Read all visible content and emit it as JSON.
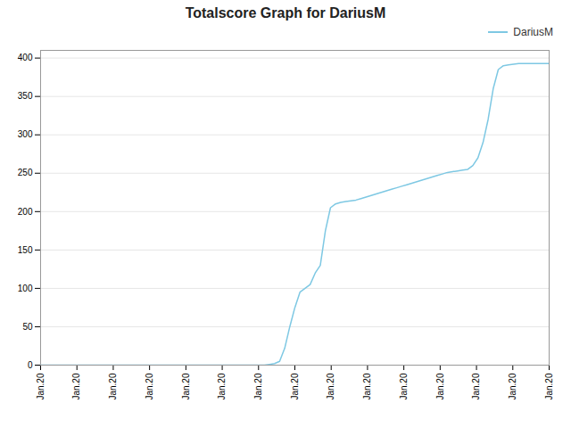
{
  "chart_data": {
    "type": "line",
    "title": "Totalscore Graph for DariusM",
    "x": [
      0,
      1,
      2,
      3,
      4,
      5,
      6,
      7,
      8,
      9,
      10,
      11,
      12,
      13,
      14,
      15,
      16,
      17,
      18,
      19,
      20,
      21,
      22,
      23,
      24,
      25,
      26,
      27,
      28,
      29,
      30,
      31,
      32,
      33,
      34,
      35,
      36,
      37,
      38,
      39,
      40,
      41,
      42,
      43,
      44,
      45,
      46,
      47,
      48,
      49,
      50,
      51,
      52,
      53,
      54,
      55,
      56,
      57,
      58,
      59,
      60,
      61,
      62,
      63,
      64,
      65,
      66,
      67,
      68,
      69,
      70,
      71,
      72,
      73,
      74,
      75,
      76,
      77,
      78,
      79,
      80,
      81,
      82,
      83,
      84,
      85,
      86,
      87,
      88,
      89,
      90,
      91,
      92,
      93,
      94,
      95,
      96,
      97,
      98,
      99,
      100
    ],
    "series": [
      {
        "name": "DariusM",
        "color": "#7ec8e3",
        "values": [
          0,
          0,
          0,
          0,
          0,
          0,
          0,
          0,
          0,
          0,
          0,
          0,
          0,
          0,
          0,
          0,
          0,
          0,
          0,
          0,
          0,
          0,
          0,
          0,
          0,
          0,
          0,
          0,
          0,
          0,
          0,
          0,
          0,
          0,
          0,
          0,
          0,
          0,
          0,
          0,
          0,
          0,
          0,
          0,
          0,
          1,
          2,
          5,
          22,
          50,
          75,
          95,
          100,
          105,
          120,
          130,
          175,
          205,
          210,
          212,
          213,
          214,
          215,
          217,
          219,
          221,
          223,
          225,
          227,
          229,
          231,
          233,
          235,
          237,
          239,
          241,
          243,
          245,
          247,
          249,
          251,
          252,
          253,
          254,
          255,
          260,
          270,
          290,
          320,
          360,
          385,
          390,
          391,
          392,
          393,
          393,
          393,
          393,
          393,
          393,
          393
        ]
      }
    ],
    "xlim": [
      0,
      100
    ],
    "xticks": [
      {
        "value": 0,
        "label": "Jan.20"
      },
      {
        "value": 7.142857142857143,
        "label": "Jan.20"
      },
      {
        "value": 14.285714285714286,
        "label": "Jan.20"
      },
      {
        "value": 21.428571428571427,
        "label": "Jan.20"
      },
      {
        "value": 28.571428571428573,
        "label": "Jan.20"
      },
      {
        "value": 35.714285714285715,
        "label": "Jan.20"
      },
      {
        "value": 42.857142857142854,
        "label": "Jan.20"
      },
      {
        "value": 50,
        "label": "Jan.20"
      },
      {
        "value": 57.142857142857146,
        "label": "Jan.20"
      },
      {
        "value": 64.28571428571429,
        "label": "Jan.20"
      },
      {
        "value": 71.42857142857143,
        "label": "Jan.20"
      },
      {
        "value": 78.57142857142857,
        "label": "Jan.20"
      },
      {
        "value": 85.71428571428571,
        "label": "Jan.20"
      },
      {
        "value": 92.85714285714286,
        "label": "Jan.20"
      },
      {
        "value": 100,
        "label": "Jan.20"
      }
    ],
    "ylim": [
      0,
      410
    ],
    "yticks": [
      0,
      50,
      100,
      150,
      200,
      250,
      300,
      350,
      400
    ],
    "grid": true,
    "legend": "upper right"
  }
}
